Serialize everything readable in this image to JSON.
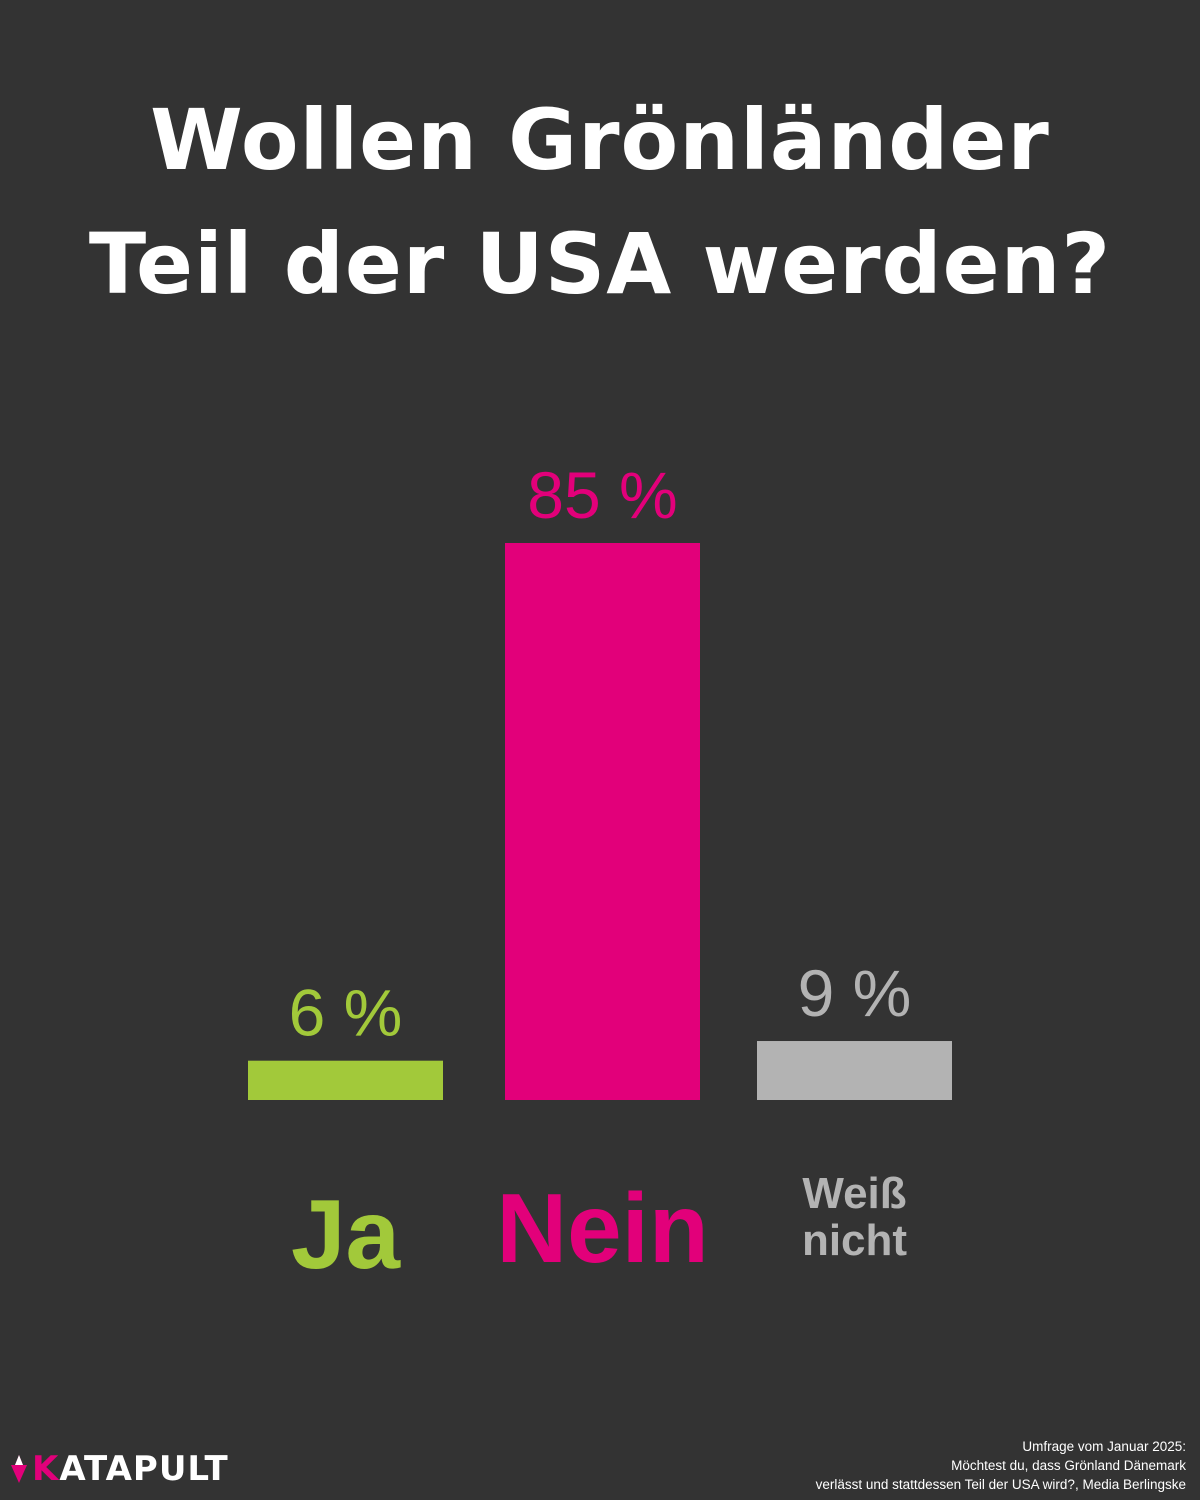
{
  "title_lines": [
    "Wollen Grönländer",
    "Teil der USA werden?"
  ],
  "colors": {
    "background": "#333333",
    "ja": "#a2c93a",
    "nein": "#e2007a",
    "weiss_nicht": "#b3b3b3",
    "text": "#ffffff"
  },
  "chart_data": {
    "type": "bar",
    "title": "Wollen Grönländer Teil der USA werden?",
    "categories": [
      "Ja",
      "Nein",
      "Weiß nicht"
    ],
    "values": [
      6,
      85,
      9
    ],
    "value_labels": [
      "6 %",
      "85 %",
      "9 %"
    ],
    "category_label_lines": [
      [
        "Ja"
      ],
      [
        "Nein"
      ],
      [
        "Weiß",
        "nicht"
      ]
    ],
    "bar_colors": [
      "#a2c93a",
      "#e2007a",
      "#b3b3b3"
    ],
    "unit": "%",
    "ylim": [
      0,
      85
    ],
    "grid": false,
    "legend": "none"
  },
  "source": {
    "lines": [
      "Umfrage vom Januar 2025:",
      "Möchtest du,  dass Grönland Dänemark",
      "verlässt und stattdessen Teil der USA wird?, Media Berlingske"
    ]
  },
  "logo": {
    "first_letter": "K",
    "rest": "ATAPULT",
    "icon": "flame-icon"
  }
}
